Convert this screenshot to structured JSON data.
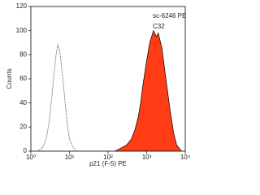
{
  "chart_data": {
    "type": "histogram",
    "annotations": [
      "sc-6246 PE",
      "C32"
    ],
    "x_label": "p21 (F-5) PE",
    "y_label": "Counts",
    "xscale": "log",
    "xlim": [
      1,
      10000
    ],
    "xticks": [
      {
        "value": 1,
        "label": "10⁰"
      },
      {
        "value": 10,
        "label": "10¹"
      },
      {
        "value": 100,
        "label": "10²"
      },
      {
        "value": 1000,
        "label": "10³"
      },
      {
        "value": 10000,
        "label": "10⁴"
      }
    ],
    "ylim": [
      0,
      120
    ],
    "yticks": [
      0,
      20,
      40,
      60,
      80,
      100,
      120
    ],
    "series": [
      {
        "color": "#555555",
        "line_style": "dotted",
        "filled": false,
        "x": [
          1.5,
          2,
          2.5,
          3,
          3.5,
          4,
          4.5,
          5,
          5.5,
          6,
          7,
          8,
          9,
          10,
          12,
          15
        ],
        "values": [
          0,
          3,
          10,
          25,
          45,
          65,
          80,
          88,
          85,
          75,
          55,
          35,
          20,
          10,
          4,
          0
        ]
      },
      {
        "color": "#ff3c14",
        "line_style": "solid",
        "filled": true,
        "x": [
          150,
          200,
          300,
          400,
          500,
          600,
          700,
          800,
          1000,
          1200,
          1500,
          1800,
          2000,
          2500,
          3000,
          4000,
          5000,
          6000,
          8000
        ],
        "values": [
          0,
          2,
          5,
          10,
          18,
          28,
          40,
          55,
          75,
          90,
          100,
          95,
          98,
          85,
          65,
          35,
          15,
          5,
          0
        ]
      }
    ]
  }
}
